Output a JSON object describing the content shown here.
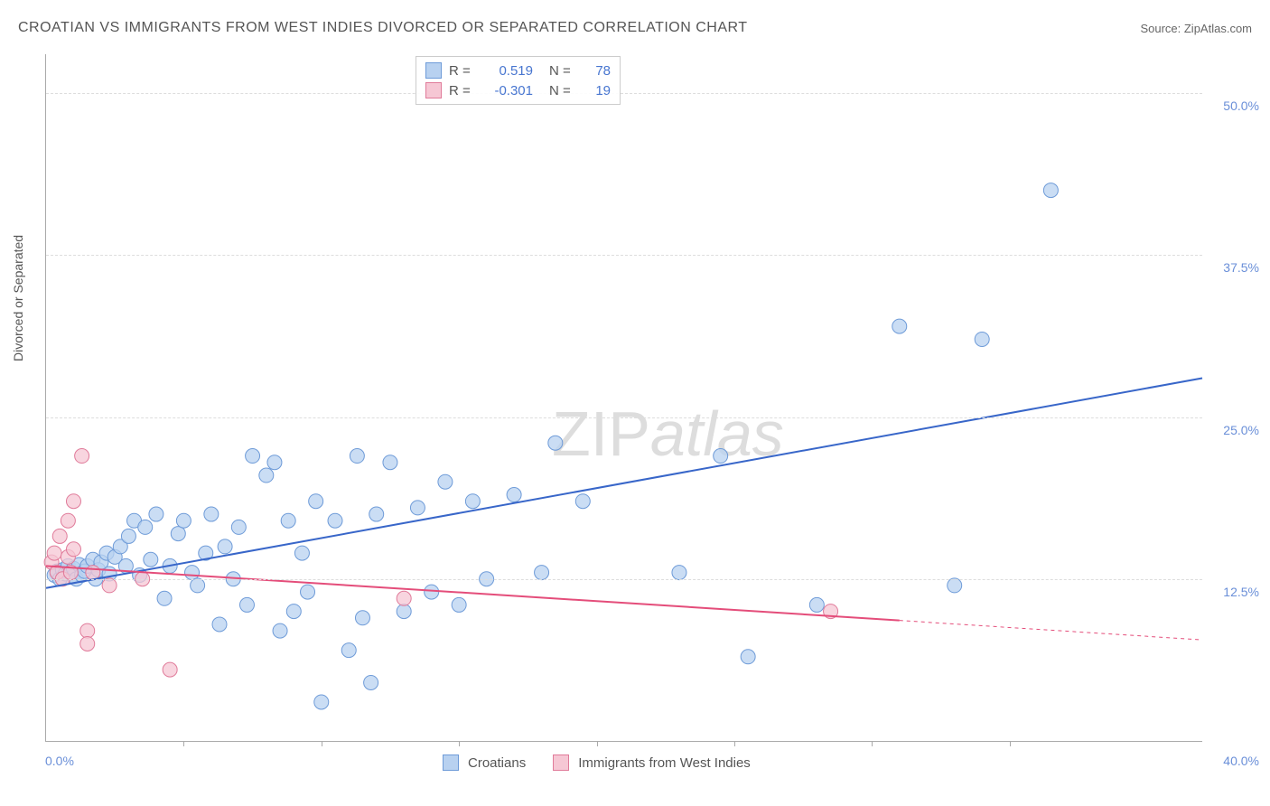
{
  "title": "CROATIAN VS IMMIGRANTS FROM WEST INDIES DIVORCED OR SEPARATED CORRELATION CHART",
  "source_label": "Source: ZipAtlas.com",
  "y_axis_label": "Divorced or Separated",
  "watermark": {
    "part1": "ZIP",
    "part2": "atlas"
  },
  "chart": {
    "type": "scatter",
    "x_min": 0.0,
    "x_max": 42.0,
    "y_min": 0.0,
    "y_max": 53.0,
    "x_axis_label_left": "0.0%",
    "x_axis_label_right": "40.0%",
    "y_ticks": [
      {
        "v": 12.5,
        "label": "12.5%"
      },
      {
        "v": 25.0,
        "label": "25.0%"
      },
      {
        "v": 37.5,
        "label": "37.5%"
      },
      {
        "v": 50.0,
        "label": "50.0%"
      }
    ],
    "x_tick_positions": [
      5,
      10,
      15,
      20,
      25,
      30,
      35
    ],
    "background_color": "#ffffff",
    "grid_color": "#dddddd",
    "axis_color": "#aaaaaa",
    "tick_label_color": "#6a8fd8",
    "marker_radius": 8,
    "marker_stroke_width": 1,
    "series": [
      {
        "name_key": "croatians",
        "fill": "#b8d1f0",
        "stroke": "#6e9bd8",
        "line_color": "#3866c9",
        "line_width": 2,
        "trend": {
          "x1": 0,
          "y1": 11.8,
          "x2": 42,
          "y2": 28.0
        },
        "points": [
          [
            0.3,
            12.8
          ],
          [
            0.4,
            13.1
          ],
          [
            0.5,
            12.5
          ],
          [
            0.6,
            13.2
          ],
          [
            0.7,
            12.9
          ],
          [
            0.8,
            13.5
          ],
          [
            0.9,
            13.0
          ],
          [
            1.0,
            12.7
          ],
          [
            1.0,
            13.3
          ],
          [
            1.1,
            12.5
          ],
          [
            1.2,
            13.6
          ],
          [
            1.3,
            12.8
          ],
          [
            1.4,
            13.1
          ],
          [
            1.5,
            13.5
          ],
          [
            1.7,
            14.0
          ],
          [
            1.8,
            12.5
          ],
          [
            1.9,
            13.2
          ],
          [
            2.0,
            13.8
          ],
          [
            2.2,
            14.5
          ],
          [
            2.3,
            12.9
          ],
          [
            2.5,
            14.2
          ],
          [
            2.7,
            15.0
          ],
          [
            2.9,
            13.5
          ],
          [
            3.0,
            15.8
          ],
          [
            3.2,
            17.0
          ],
          [
            3.4,
            12.8
          ],
          [
            3.6,
            16.5
          ],
          [
            3.8,
            14.0
          ],
          [
            4.0,
            17.5
          ],
          [
            4.3,
            11.0
          ],
          [
            4.5,
            13.5
          ],
          [
            4.8,
            16.0
          ],
          [
            5.0,
            17.0
          ],
          [
            5.3,
            13.0
          ],
          [
            5.5,
            12.0
          ],
          [
            5.8,
            14.5
          ],
          [
            6.0,
            17.5
          ],
          [
            6.3,
            9.0
          ],
          [
            6.5,
            15.0
          ],
          [
            6.8,
            12.5
          ],
          [
            7.0,
            16.5
          ],
          [
            7.3,
            10.5
          ],
          [
            7.5,
            22.0
          ],
          [
            8.0,
            20.5
          ],
          [
            8.3,
            21.5
          ],
          [
            8.5,
            8.5
          ],
          [
            8.8,
            17.0
          ],
          [
            9.0,
            10.0
          ],
          [
            9.3,
            14.5
          ],
          [
            9.5,
            11.5
          ],
          [
            9.8,
            18.5
          ],
          [
            10.0,
            3.0
          ],
          [
            10.5,
            17.0
          ],
          [
            11.0,
            7.0
          ],
          [
            11.3,
            22.0
          ],
          [
            11.5,
            9.5
          ],
          [
            11.8,
            4.5
          ],
          [
            12.0,
            17.5
          ],
          [
            12.5,
            21.5
          ],
          [
            13.0,
            10.0
          ],
          [
            13.5,
            18.0
          ],
          [
            14.0,
            11.5
          ],
          [
            14.5,
            20.0
          ],
          [
            15.0,
            10.5
          ],
          [
            15.5,
            18.5
          ],
          [
            16.0,
            12.5
          ],
          [
            17.0,
            19.0
          ],
          [
            18.0,
            13.0
          ],
          [
            18.5,
            23.0
          ],
          [
            19.5,
            18.5
          ],
          [
            23.0,
            13.0
          ],
          [
            24.5,
            22.0
          ],
          [
            25.5,
            6.5
          ],
          [
            28.0,
            10.5
          ],
          [
            31.0,
            32.0
          ],
          [
            33.0,
            12.0
          ],
          [
            34.0,
            31.0
          ],
          [
            36.5,
            42.5
          ]
        ]
      },
      {
        "name_key": "west_indies",
        "fill": "#f6c7d4",
        "stroke": "#e07b9a",
        "line_color": "#e44d7a",
        "line_width": 2,
        "trend": {
          "x1": 0,
          "y1": 13.5,
          "x2": 31,
          "y2": 9.3
        },
        "trend_ext": {
          "x1": 31,
          "y1": 9.3,
          "x2": 42,
          "y2": 7.8
        },
        "points": [
          [
            0.2,
            13.8
          ],
          [
            0.3,
            14.5
          ],
          [
            0.4,
            13.0
          ],
          [
            0.5,
            15.8
          ],
          [
            0.6,
            12.5
          ],
          [
            0.8,
            14.2
          ],
          [
            0.8,
            17.0
          ],
          [
            0.9,
            13.0
          ],
          [
            1.0,
            14.8
          ],
          [
            1.0,
            18.5
          ],
          [
            1.3,
            22.0
          ],
          [
            1.5,
            8.5
          ],
          [
            1.5,
            7.5
          ],
          [
            1.7,
            13.0
          ],
          [
            2.3,
            12.0
          ],
          [
            3.5,
            12.5
          ],
          [
            4.5,
            5.5
          ],
          [
            13.0,
            11.0
          ],
          [
            28.5,
            10.0
          ]
        ]
      }
    ]
  },
  "legend_top": {
    "rows": [
      {
        "swatch_fill": "#b8d1f0",
        "swatch_stroke": "#6e9bd8",
        "r_label": "R =",
        "r_value": "0.519",
        "n_label": "N =",
        "n_value": "78"
      },
      {
        "swatch_fill": "#f6c7d4",
        "swatch_stroke": "#e07b9a",
        "r_label": "R =",
        "r_value": "-0.301",
        "n_label": "N =",
        "n_value": "19"
      }
    ]
  },
  "legend_bottom": {
    "items": [
      {
        "swatch_fill": "#b8d1f0",
        "swatch_stroke": "#6e9bd8",
        "label_key": "croatians"
      },
      {
        "swatch_fill": "#f6c7d4",
        "swatch_stroke": "#e07b9a",
        "label_key": "west_indies"
      }
    ]
  },
  "series_labels": {
    "croatians": "Croatians",
    "west_indies": "Immigrants from West Indies"
  }
}
